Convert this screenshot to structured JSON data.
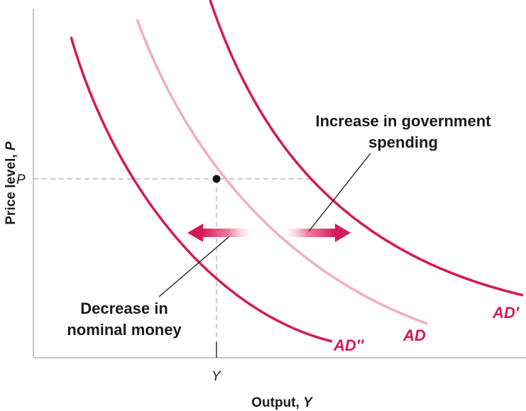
{
  "axes": {
    "y_label": "Price level, ",
    "y_label_var": "P",
    "x_label": "Output, ",
    "x_label_var": "Y",
    "y_tick": "P",
    "x_tick": "Y"
  },
  "curves": {
    "ad_double_prime": "AD″",
    "ad": "AD",
    "ad_prime": "AD′"
  },
  "annotations": {
    "increase_line1": "Increase in government",
    "increase_line2": "spending",
    "decrease_line1": "Decrease in",
    "decrease_line2": "nominal money"
  },
  "colors": {
    "curve_dark": "#d6185a",
    "curve_light": "#f2aebf",
    "axis": "#b5b5b5",
    "guide": "#aaaaaa",
    "point": "#111111",
    "text": "#1a1a1a"
  }
}
